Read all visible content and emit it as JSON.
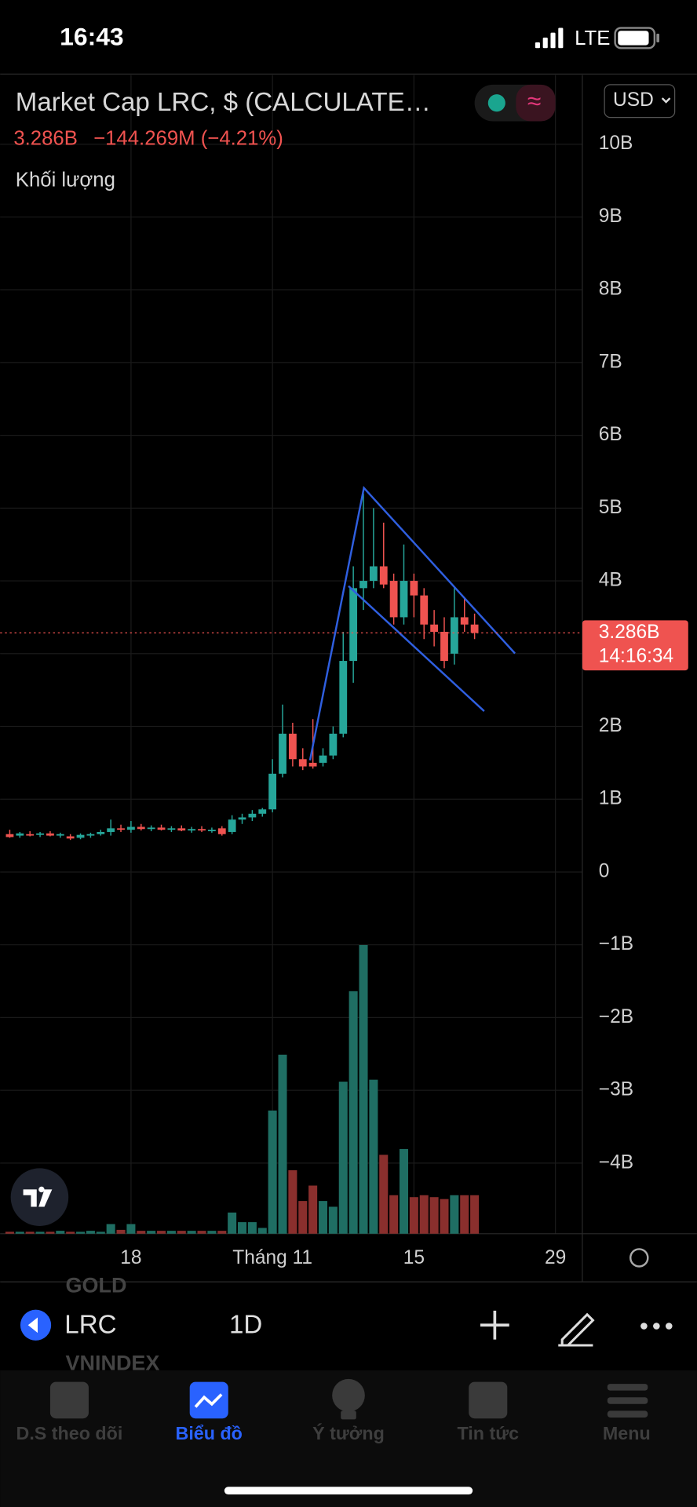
{
  "status_bar": {
    "time": "16:43",
    "network": "LTE"
  },
  "header": {
    "title": "Market Cap LRC, $ (CALCULATE…",
    "price": "3.286B",
    "change": "−144.269M (−4.21%)",
    "volume_label": "Khối lượng",
    "currency": "USD"
  },
  "chart": {
    "ylim": [
      -4.97,
      10.95
    ],
    "yticks": [
      {
        "value": 10,
        "label": "10B"
      },
      {
        "value": 9,
        "label": "9B"
      },
      {
        "value": 8,
        "label": "8B"
      },
      {
        "value": 7,
        "label": "7B"
      },
      {
        "value": 6,
        "label": "6B"
      },
      {
        "value": 5,
        "label": "5B"
      },
      {
        "value": 4,
        "label": "4B"
      },
      {
        "value": 3,
        "label": "3B"
      },
      {
        "value": 2,
        "label": "2B"
      },
      {
        "value": 1,
        "label": "1B"
      },
      0,
      {
        "value": -1,
        "label": "−1B"
      },
      {
        "value": -2,
        "label": "−2B"
      },
      {
        "value": -3,
        "label": "−3B"
      },
      {
        "value": -4,
        "label": "−4B"
      }
    ],
    "xticks": [
      "18",
      "Tháng 11",
      "15",
      "29"
    ],
    "last_price": {
      "value": 3.286,
      "label": "3.286B"
    },
    "countdown": "14:16:34",
    "candles": [
      [
        0.52,
        0.58,
        0.47,
        0.48
      ],
      [
        0.5,
        0.55,
        0.47,
        0.53
      ],
      [
        0.52,
        0.56,
        0.49,
        0.51
      ],
      [
        0.51,
        0.55,
        0.48,
        0.53
      ],
      [
        0.53,
        0.56,
        0.49,
        0.5
      ],
      [
        0.5,
        0.54,
        0.47,
        0.52
      ],
      [
        0.49,
        0.52,
        0.44,
        0.46
      ],
      [
        0.47,
        0.53,
        0.45,
        0.51
      ],
      [
        0.5,
        0.54,
        0.47,
        0.52
      ],
      [
        0.52,
        0.58,
        0.5,
        0.55
      ],
      [
        0.55,
        0.72,
        0.5,
        0.6
      ],
      [
        0.6,
        0.65,
        0.55,
        0.58
      ],
      [
        0.58,
        0.7,
        0.54,
        0.62
      ],
      [
        0.62,
        0.66,
        0.57,
        0.59
      ],
      [
        0.59,
        0.64,
        0.56,
        0.61
      ],
      [
        0.61,
        0.65,
        0.57,
        0.58
      ],
      [
        0.58,
        0.63,
        0.55,
        0.6
      ],
      [
        0.6,
        0.64,
        0.56,
        0.57
      ],
      [
        0.57,
        0.62,
        0.54,
        0.59
      ],
      [
        0.59,
        0.63,
        0.55,
        0.57
      ],
      [
        0.57,
        0.61,
        0.54,
        0.58
      ],
      [
        0.6,
        0.63,
        0.5,
        0.52
      ],
      [
        0.55,
        0.78,
        0.52,
        0.72
      ],
      [
        0.72,
        0.8,
        0.66,
        0.75
      ],
      [
        0.75,
        0.85,
        0.7,
        0.8
      ],
      [
        0.8,
        0.88,
        0.76,
        0.86
      ],
      [
        0.86,
        1.55,
        0.82,
        1.35
      ],
      [
        1.35,
        2.3,
        1.3,
        1.9
      ],
      [
        1.9,
        2.05,
        1.45,
        1.55
      ],
      [
        1.55,
        1.7,
        1.4,
        1.45
      ],
      [
        1.5,
        2.1,
        1.42,
        1.45
      ],
      [
        1.5,
        1.7,
        1.45,
        1.6
      ],
      [
        1.6,
        2.0,
        1.55,
        1.9
      ],
      [
        1.9,
        3.3,
        1.85,
        2.9
      ],
      [
        2.9,
        4.2,
        2.6,
        3.9
      ],
      [
        3.9,
        5.2,
        3.6,
        4.0
      ],
      [
        4.0,
        5.0,
        3.9,
        4.2
      ],
      [
        4.2,
        4.8,
        3.9,
        3.95
      ],
      [
        4.0,
        4.1,
        3.4,
        3.5
      ],
      [
        3.5,
        4.5,
        3.4,
        4.0
      ],
      [
        4.0,
        4.1,
        3.5,
        3.8
      ],
      [
        3.8,
        3.9,
        3.2,
        3.4
      ],
      [
        3.4,
        3.6,
        3.1,
        3.3
      ],
      [
        3.3,
        3.5,
        2.8,
        2.9
      ],
      [
        3.0,
        3.9,
        2.85,
        3.5
      ],
      [
        3.5,
        3.75,
        3.3,
        3.4
      ],
      [
        3.4,
        3.55,
        3.2,
        3.286
      ]
    ],
    "volume": [
      2,
      2,
      2,
      2,
      2,
      3,
      2,
      2,
      3,
      2,
      10,
      4,
      10,
      3,
      3,
      3,
      3,
      3,
      3,
      3,
      3,
      3,
      22,
      12,
      12,
      6,
      128,
      186,
      66,
      34,
      50,
      34,
      28,
      158,
      252,
      300,
      160,
      82,
      40,
      88,
      38,
      40,
      38,
      36,
      40,
      40,
      40
    ]
  },
  "overlay": [
    "GOLD",
    "VNINDEX"
  ],
  "toolbar": {
    "symbol": "LRC",
    "interval": "1D"
  },
  "tabs": [
    "D.S theo dõi",
    "Biểu đồ",
    "Ý tưởng",
    "Tin tức",
    "Menu"
  ]
}
